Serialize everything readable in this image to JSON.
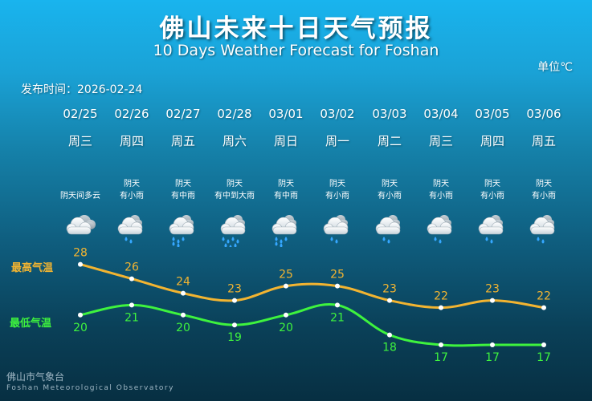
{
  "header": {
    "title": "佛山未来十日天气预报",
    "subtitle": "10 Days Weather Forecast for Foshan",
    "unit": "单位℃",
    "publish_time": "发布时间：2026-02-24"
  },
  "days": [
    {
      "date": "02/25",
      "weekday": "周三",
      "cond1": "",
      "cond2": "阴天间多云",
      "icon": "cloudy-icon"
    },
    {
      "date": "02/26",
      "weekday": "周四",
      "cond1": "阴天",
      "cond2": "有小雨",
      "icon": "light-rain-icon"
    },
    {
      "date": "02/27",
      "weekday": "周五",
      "cond1": "阴天",
      "cond2": "有中雨",
      "icon": "moderate-rain-icon"
    },
    {
      "date": "02/28",
      "weekday": "周六",
      "cond1": "阴天",
      "cond2": "有中到大雨",
      "icon": "heavy-rain-icon"
    },
    {
      "date": "03/01",
      "weekday": "周日",
      "cond1": "阴天",
      "cond2": "有中雨",
      "icon": "moderate-rain-icon"
    },
    {
      "date": "03/02",
      "weekday": "周一",
      "cond1": "阴天",
      "cond2": "有小雨",
      "icon": "light-rain-icon"
    },
    {
      "date": "03/03",
      "weekday": "周二",
      "cond1": "阴天",
      "cond2": "有小雨",
      "icon": "light-rain-icon"
    },
    {
      "date": "03/04",
      "weekday": "周三",
      "cond1": "阴天",
      "cond2": "有小雨",
      "icon": "light-rain-icon"
    },
    {
      "date": "03/05",
      "weekday": "周四",
      "cond1": "阴天",
      "cond2": "有小雨",
      "icon": "light-rain-icon"
    },
    {
      "date": "03/06",
      "weekday": "周五",
      "cond1": "阴天",
      "cond2": "有小雨",
      "icon": "light-rain-icon"
    }
  ],
  "labels": {
    "high": "最高气温",
    "low": "最低气温"
  },
  "colors": {
    "high": "#f2b431",
    "low": "#3ef33e"
  },
  "chart_data": {
    "type": "line",
    "x": [
      "02/25",
      "02/26",
      "02/27",
      "02/28",
      "03/01",
      "03/02",
      "03/03",
      "03/04",
      "03/05",
      "03/06"
    ],
    "series": [
      {
        "name": "最高气温",
        "values": [
          28,
          26,
          24,
          23,
          25,
          25,
          23,
          22,
          23,
          22
        ]
      },
      {
        "name": "最低气温",
        "values": [
          20,
          21,
          20,
          19,
          20,
          21,
          18,
          17,
          17,
          17
        ]
      }
    ]
  },
  "footer": {
    "org_cn": "佛山市气象台",
    "org_en": "Foshan Meteorological Observatory"
  }
}
